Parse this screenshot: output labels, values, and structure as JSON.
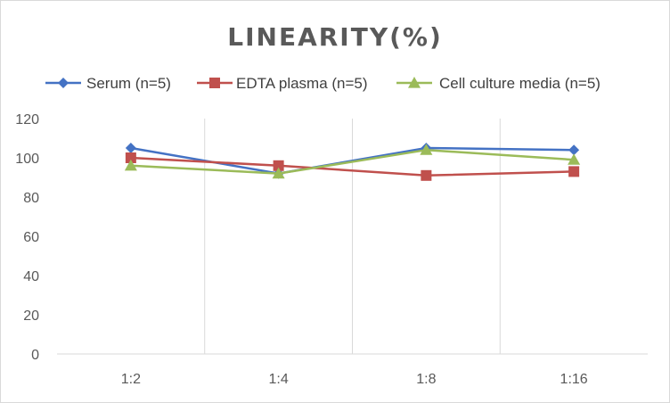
{
  "chart_data": {
    "type": "line",
    "title": "LINEARITY(%)",
    "xlabel": "",
    "ylabel": "",
    "categories": [
      "1:2",
      "1:4",
      "1:8",
      "1:16"
    ],
    "ylim": [
      0,
      120
    ],
    "yticks": [
      0,
      20,
      40,
      60,
      80,
      100,
      120
    ],
    "grid": "vertical",
    "legend_position": "top",
    "series": [
      {
        "name": "Serum (n=5)",
        "values": [
          105,
          92,
          105,
          104
        ],
        "color": "#4472c4",
        "marker": "diamond"
      },
      {
        "name": "EDTA plasma (n=5)",
        "values": [
          100,
          96,
          91,
          93
        ],
        "color": "#c0504d",
        "marker": "square"
      },
      {
        "name": "Cell culture media (n=5)",
        "values": [
          96,
          92,
          104,
          99
        ],
        "color": "#9bbb59",
        "marker": "triangle"
      }
    ]
  }
}
